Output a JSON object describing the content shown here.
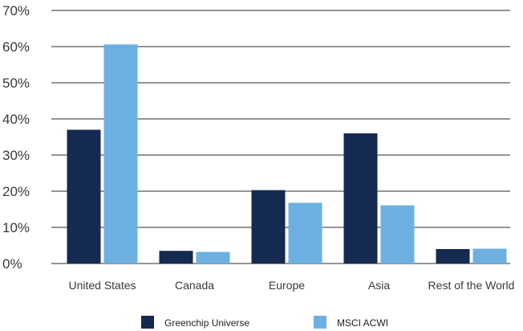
{
  "chart_data": {
    "type": "bar",
    "categories": [
      "United States",
      "Canada",
      "Europe",
      "Asia",
      "Rest of the World"
    ],
    "series": [
      {
        "name": "Greenchip Universe",
        "color": "#142a50",
        "values": [
          37,
          3.5,
          20.3,
          36,
          4
        ]
      },
      {
        "name": "MSCI ACWI",
        "color": "#6cb0e2",
        "values": [
          60.6,
          3.2,
          16.8,
          16.1,
          4.1
        ]
      }
    ],
    "ylim": [
      0,
      70
    ],
    "yticks": [
      0,
      10,
      20,
      30,
      40,
      50,
      60,
      70
    ],
    "ytick_labels": [
      "0%",
      "10%",
      "20%",
      "30%",
      "40%",
      "50%",
      "60%",
      "70%"
    ],
    "grid": true,
    "legend_position": "bottom",
    "title": "",
    "xlabel": "",
    "ylabel": ""
  }
}
